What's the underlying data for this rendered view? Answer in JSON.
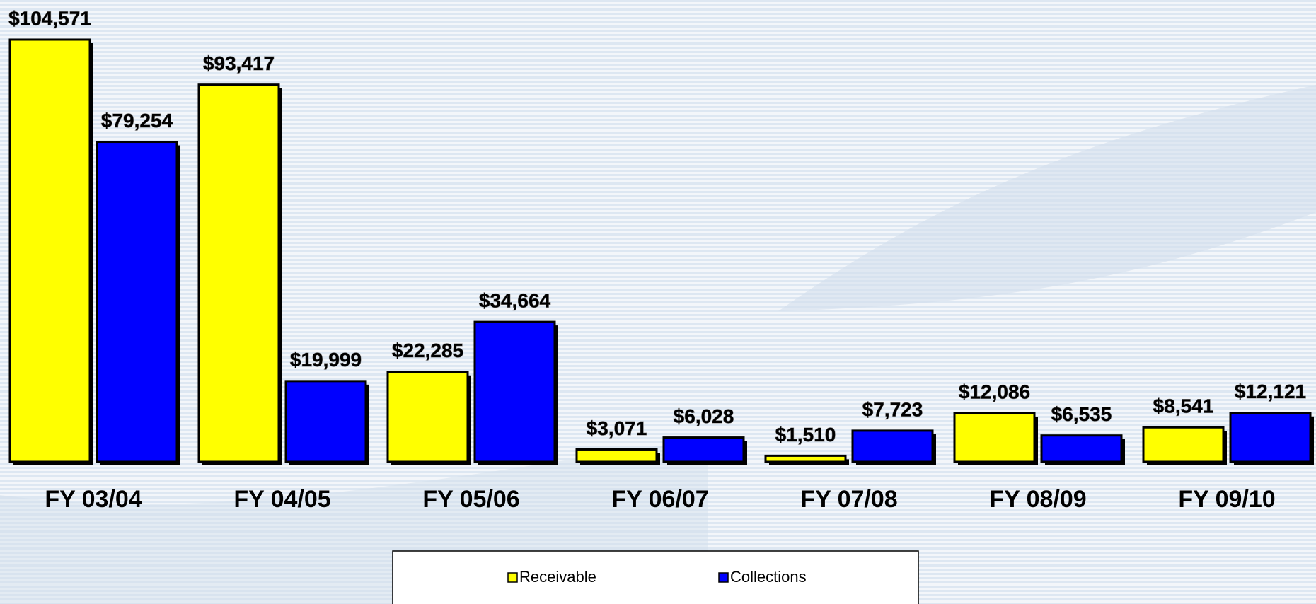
{
  "chart_data": {
    "type": "bar",
    "categories": [
      "FY 03/04",
      "FY 04/05",
      "FY 05/06",
      "FY 06/07",
      "FY 07/08",
      "FY 08/09",
      "FY 09/10"
    ],
    "series": [
      {
        "name": "Receivable",
        "color": "#ffff00",
        "values": [
          104571,
          93417,
          22285,
          3071,
          1510,
          12086,
          8541
        ],
        "value_labels": [
          "$104,571",
          "$93,417",
          "$22,285",
          "$3,071",
          "$1,510",
          "$12,086",
          "$8,541"
        ]
      },
      {
        "name": "Collections",
        "color": "#0000ff",
        "values": [
          79254,
          19999,
          34664,
          6028,
          7723,
          6535,
          12121
        ],
        "value_labels": [
          "$79,254",
          "$19,999",
          "$34,664",
          "$6,028",
          "$7,723",
          "$6,535",
          "$12,121"
        ]
      }
    ],
    "legend": "bottom"
  }
}
